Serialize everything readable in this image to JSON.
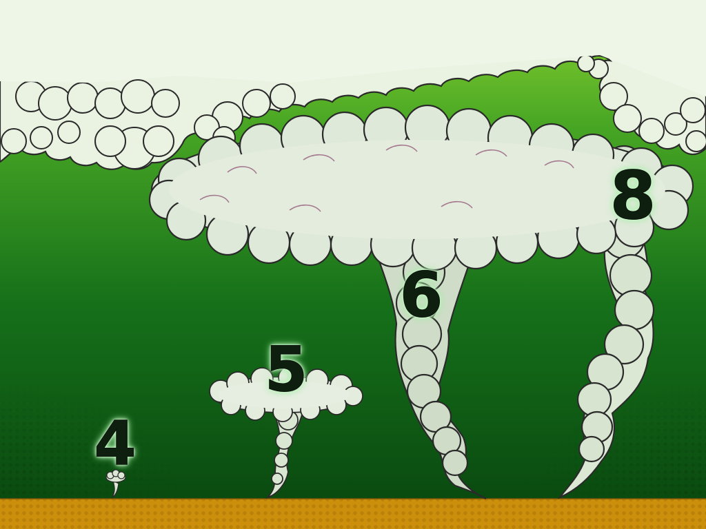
{
  "scene": {
    "colors": {
      "sky_top": "#7ec92a",
      "sky_bottom": "#0b4f12",
      "ground": "#cc8f0c",
      "cloud_fill": "#e8f2e0",
      "cloud_outline": "#2b2b2b",
      "label_text": "#0f1f0f",
      "label_glow": "#b8f0b8"
    },
    "labels": [
      "4",
      "5",
      "6",
      "8"
    ]
  }
}
